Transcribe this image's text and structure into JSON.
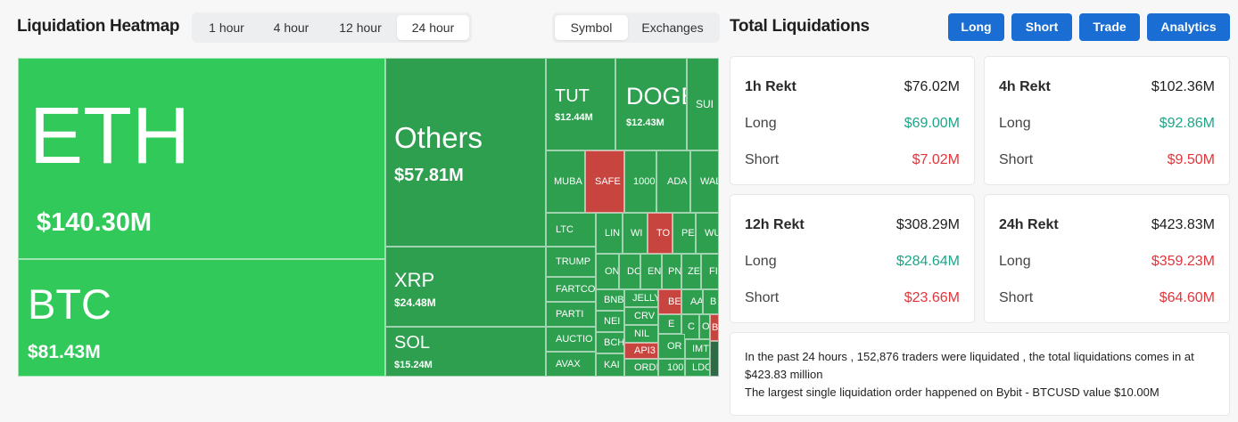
{
  "heatmap": {
    "title": "Liquidation Heatmap",
    "time_tabs": [
      "1 hour",
      "4 hour",
      "12 hour",
      "24 hour"
    ],
    "active_time_tab": "24 hour",
    "view_tabs": [
      "Symbol",
      "Exchanges"
    ],
    "active_view_tab": "Symbol",
    "tiles": {
      "eth": {
        "symbol": "ETH",
        "value": "$140.30M"
      },
      "btc": {
        "symbol": "BTC",
        "value": "$81.43M"
      },
      "others": {
        "symbol": "Others",
        "value": "$57.81M"
      },
      "xrp": {
        "symbol": "XRP",
        "value": "$24.48M"
      },
      "sol": {
        "symbol": "SOL",
        "value": "$15.24M"
      },
      "tut": {
        "symbol": "TUT",
        "value": "$12.44M"
      },
      "doge": {
        "symbol": "DOGE",
        "value": "$12.43M"
      },
      "sui": {
        "symbol": "SUI"
      },
      "muba": {
        "symbol": "MUBA"
      },
      "safe": {
        "symbol": "SAFE"
      },
      "k1000": {
        "symbol": "1000"
      },
      "ada": {
        "symbol": "ADA"
      },
      "wal": {
        "symbol": "WAL"
      },
      "ltc": {
        "symbol": "LTC"
      },
      "trump": {
        "symbol": "TRUMP"
      },
      "fartco": {
        "symbol": "FARTCO"
      },
      "parti": {
        "symbol": "PARTI"
      },
      "auctio": {
        "symbol": "AUCTIO"
      },
      "avax": {
        "symbol": "AVAX"
      },
      "lin": {
        "symbol": "LIN"
      },
      "wi": {
        "symbol": "WI"
      },
      "to": {
        "symbol": "TO"
      },
      "pe": {
        "symbol": "PE"
      },
      "wu": {
        "symbol": "WU"
      },
      "on": {
        "symbol": "ON"
      },
      "do": {
        "symbol": "DO"
      },
      "en": {
        "symbol": "EN"
      },
      "pn": {
        "symbol": "PN"
      },
      "ze": {
        "symbol": "ZE"
      },
      "fi": {
        "symbol": "FI"
      },
      "bnb": {
        "symbol": "BNB"
      },
      "jelly": {
        "symbol": "JELLY"
      },
      "be1": {
        "symbol": "BE"
      },
      "aa": {
        "symbol": "AA"
      },
      "b1": {
        "symbol": "B"
      },
      "nei": {
        "symbol": "NEI"
      },
      "crv": {
        "symbol": "CRV"
      },
      "e": {
        "symbol": "E"
      },
      "bch": {
        "symbol": "BCH"
      },
      "nil": {
        "symbol": "NIL"
      },
      "c1": {
        "symbol": "C"
      },
      "o1": {
        "symbol": "O"
      },
      "b2": {
        "symbol": "B"
      },
      "api3": {
        "symbol": "API3"
      },
      "or": {
        "symbol": "OR"
      },
      "imt": {
        "symbol": "IMT"
      },
      "kai": {
        "symbol": "KAI"
      },
      "ordi": {
        "symbol": "ORDI"
      },
      "k100": {
        "symbol": "100"
      },
      "ldc": {
        "symbol": "LDC"
      }
    }
  },
  "totals": {
    "title": "Total Liquidations",
    "buttons": [
      "Long",
      "Short",
      "Trade",
      "Analytics"
    ],
    "cards": [
      {
        "label": "1h Rekt",
        "total": "$76.02M",
        "long_label": "Long",
        "long": "$69.00M",
        "short_label": "Short",
        "short": "$7.02M"
      },
      {
        "label": "4h Rekt",
        "total": "$102.36M",
        "long_label": "Long",
        "long": "$92.86M",
        "short_label": "Short",
        "short": "$9.50M"
      },
      {
        "label": "12h Rekt",
        "total": "$308.29M",
        "long_label": "Long",
        "long": "$284.64M",
        "short_label": "Short",
        "short": "$23.66M"
      },
      {
        "label": "24h Rekt",
        "total": "$423.83M",
        "long_label": "Long",
        "long": "$359.23M",
        "short_label": "Short",
        "short": "$64.60M"
      }
    ],
    "summary_line1": "In the past 24 hours , 152,876 traders were liquidated , the total liquidations comes in at $423.83 million",
    "summary_line2": "The largest single liquidation order happened on Bybit - BTCUSD value $10.00M"
  },
  "colors": {
    "accent": "#1a6dd2",
    "long_green": "#1fa588",
    "short_red": "#e0363c",
    "tile_green_bright": "#30c95a",
    "tile_green": "#2e9e4f",
    "tile_red": "#c8443f"
  }
}
